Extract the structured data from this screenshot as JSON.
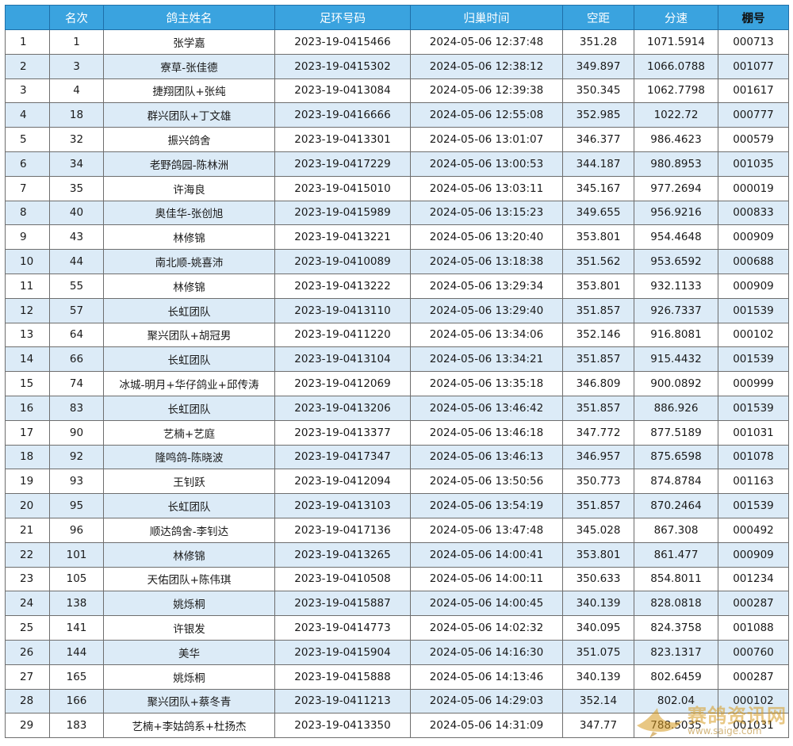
{
  "table": {
    "headers": [
      "",
      "名次",
      "鸽主姓名",
      "足环号码",
      "归巢时间",
      "空距",
      "分速",
      "棚号"
    ],
    "rows": [
      [
        "1",
        "1",
        "张学嘉",
        "2023-19-0415466",
        "2024-05-06 12:37:48",
        "351.28",
        "1071.5914",
        "000713"
      ],
      [
        "2",
        "3",
        "寮草-张佳德",
        "2023-19-0415302",
        "2024-05-06 12:38:12",
        "349.897",
        "1066.0788",
        "001077"
      ],
      [
        "3",
        "4",
        "捷翔团队+张纯",
        "2023-19-0413084",
        "2024-05-06 12:39:38",
        "350.345",
        "1062.7798",
        "001617"
      ],
      [
        "4",
        "18",
        "群兴团队+丁文雄",
        "2023-19-0416666",
        "2024-05-06 12:55:08",
        "352.985",
        "1022.72",
        "000777"
      ],
      [
        "5",
        "32",
        "振兴鸽舍",
        "2023-19-0413301",
        "2024-05-06 13:01:07",
        "346.377",
        "986.4623",
        "000579"
      ],
      [
        "6",
        "34",
        "老野鸽园-陈林洲",
        "2023-19-0417229",
        "2024-05-06 13:00:53",
        "344.187",
        "980.8953",
        "001035"
      ],
      [
        "7",
        "35",
        "许海良",
        "2023-19-0415010",
        "2024-05-06 13:03:11",
        "345.167",
        "977.2694",
        "000019"
      ],
      [
        "8",
        "40",
        "奥佳华-张创旭",
        "2023-19-0415989",
        "2024-05-06 13:15:23",
        "349.655",
        "956.9216",
        "000833"
      ],
      [
        "9",
        "43",
        "林修锦",
        "2023-19-0413221",
        "2024-05-06 13:20:40",
        "353.801",
        "954.4648",
        "000909"
      ],
      [
        "10",
        "44",
        "南北顺-姚喜沛",
        "2023-19-0410089",
        "2024-05-06 13:18:38",
        "351.562",
        "953.6592",
        "000688"
      ],
      [
        "11",
        "55",
        "林修锦",
        "2023-19-0413222",
        "2024-05-06 13:29:34",
        "353.801",
        "932.1133",
        "000909"
      ],
      [
        "12",
        "57",
        "长虹团队",
        "2023-19-0413110",
        "2024-05-06 13:29:40",
        "351.857",
        "926.7337",
        "001539"
      ],
      [
        "13",
        "64",
        "聚兴团队+胡冠男",
        "2023-19-0411220",
        "2024-05-06 13:34:06",
        "352.146",
        "916.8081",
        "000102"
      ],
      [
        "14",
        "66",
        "长虹团队",
        "2023-19-0413104",
        "2024-05-06 13:34:21",
        "351.857",
        "915.4432",
        "001539"
      ],
      [
        "15",
        "74",
        "冰城-明月+华仔鸽业+邱传涛",
        "2023-19-0412069",
        "2024-05-06 13:35:18",
        "346.809",
        "900.0892",
        "000999"
      ],
      [
        "16",
        "83",
        "长虹团队",
        "2023-19-0413206",
        "2024-05-06 13:46:42",
        "351.857",
        "886.926",
        "001539"
      ],
      [
        "17",
        "90",
        "艺楠+艺庭",
        "2023-19-0413377",
        "2024-05-06 13:46:18",
        "347.772",
        "877.5189",
        "001031"
      ],
      [
        "18",
        "92",
        "隆鸣鸽-陈晓波",
        "2023-19-0417347",
        "2024-05-06 13:46:13",
        "346.957",
        "875.6598",
        "001078"
      ],
      [
        "19",
        "93",
        "王钊跃",
        "2023-19-0412094",
        "2024-05-06 13:50:56",
        "350.773",
        "874.8784",
        "001163"
      ],
      [
        "20",
        "95",
        "长虹团队",
        "2023-19-0413103",
        "2024-05-06 13:54:19",
        "351.857",
        "870.2464",
        "001539"
      ],
      [
        "21",
        "96",
        "顺达鸽舍-李钊达",
        "2023-19-0417136",
        "2024-05-06 13:47:48",
        "345.028",
        "867.308",
        "000492"
      ],
      [
        "22",
        "101",
        "林修锦",
        "2023-19-0413265",
        "2024-05-06 14:00:41",
        "353.801",
        "861.477",
        "000909"
      ],
      [
        "23",
        "105",
        "天佑团队+陈伟琪",
        "2023-19-0410508",
        "2024-05-06 14:00:11",
        "350.633",
        "854.8011",
        "001234"
      ],
      [
        "24",
        "138",
        "姚烁桐",
        "2023-19-0415887",
        "2024-05-06 14:00:45",
        "340.139",
        "828.0818",
        "000287"
      ],
      [
        "25",
        "141",
        "许银发",
        "2023-19-0414773",
        "2024-05-06 14:02:32",
        "340.095",
        "824.3758",
        "001088"
      ],
      [
        "26",
        "144",
        "美华",
        "2023-19-0415904",
        "2024-05-06 14:16:30",
        "351.075",
        "823.1317",
        "000760"
      ],
      [
        "27",
        "165",
        "姚烁桐",
        "2023-19-0415888",
        "2024-05-06 14:13:46",
        "340.139",
        "802.6459",
        "000287"
      ],
      [
        "28",
        "166",
        "聚兴团队+蔡冬青",
        "2023-19-0411213",
        "2024-05-06 14:29:03",
        "352.14",
        "802.04",
        "000102"
      ],
      [
        "29",
        "183",
        "艺楠+李姑鸽系+杜扬杰",
        "2023-19-0413350",
        "2024-05-06 14:31:09",
        "347.77",
        "788.5035",
        "001031"
      ]
    ]
  },
  "watermark": {
    "name": "赛鸽资讯网",
    "url": "www.saige.com"
  },
  "colors": {
    "header_bg": "#3aa3df",
    "alt_row": "#dcebf7",
    "watermark": "#d79a1e"
  }
}
